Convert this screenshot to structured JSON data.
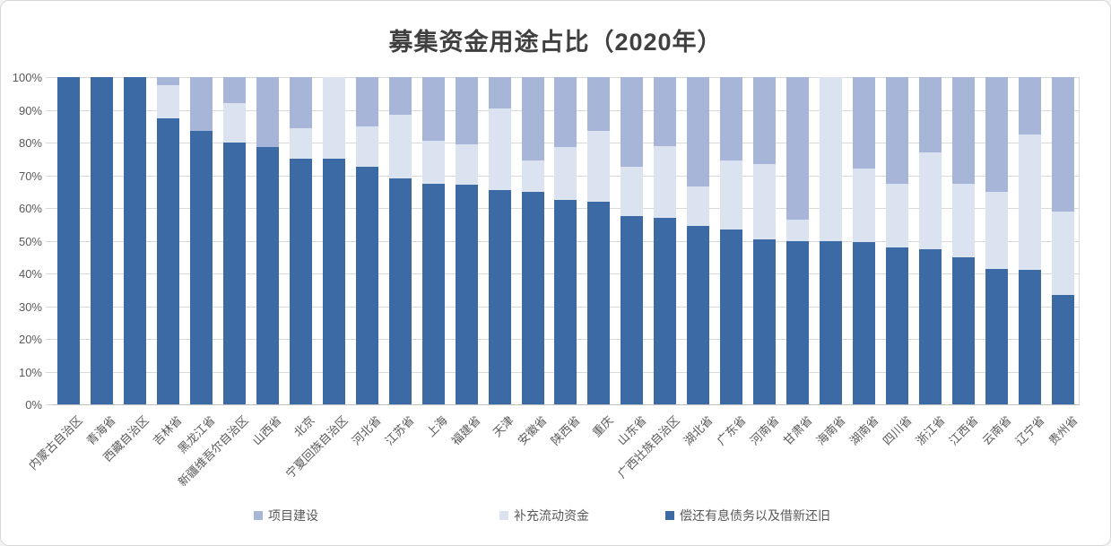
{
  "title": "募集资金用途占比（2020年）",
  "colors": {
    "project_construction": "#a7b6d8",
    "working_capital": "#dbe3f1",
    "debt_repayment": "#3b6aa5",
    "gridline": "#d9d9d9",
    "axis_line": "#bfbfbf",
    "axis_text": "#595959",
    "title_text": "#404040"
  },
  "y_axis": {
    "tick_labels": [
      "0%",
      "10%",
      "20%",
      "30%",
      "40%",
      "50%",
      "60%",
      "70%",
      "80%",
      "90%",
      "100%"
    ]
  },
  "legend": [
    {
      "label": "项目建设",
      "color": "#a7b6d8"
    },
    {
      "label": "补充流动资金",
      "color": "#dbe3f1"
    },
    {
      "label": "偿还有息债务以及借新还旧",
      "color": "#3b6aa5"
    }
  ],
  "chart_data": {
    "type": "bar",
    "subtype": "stacked-100-percent",
    "title": "募集资金用途占比（2020年）",
    "xlabel": "",
    "ylabel": "",
    "ylim": [
      0,
      100
    ],
    "grid": true,
    "legend_position": "bottom",
    "categories": [
      "内蒙古自治区",
      "青海省",
      "西藏自治区",
      "吉林省",
      "黑龙江省",
      "新疆维吾尔自治区",
      "山西省",
      "北京",
      "宁夏回族自治区",
      "河北省",
      "江苏省",
      "上海",
      "福建省",
      "天津",
      "安徽省",
      "陕西省",
      "重庆",
      "山东省",
      "广西壮族自治区",
      "湖北省",
      "广东省",
      "河南省",
      "甘肃省",
      "海南省",
      "湖南省",
      "四川省",
      "浙江省",
      "江西省",
      "云南省",
      "辽宁省",
      "贵州省"
    ],
    "series": [
      {
        "name": "偿还有息债务以及借新还旧",
        "color": "#3b6aa5",
        "stack_order": "bottom",
        "values": [
          100,
          100,
          100,
          87.5,
          83.5,
          80,
          78.5,
          75,
          75,
          72.5,
          69,
          67.5,
          67,
          65.5,
          65,
          62.5,
          62,
          57.5,
          57,
          54.5,
          53.5,
          50.5,
          50,
          50,
          49.5,
          48,
          47.5,
          45,
          41.5,
          41,
          33.5
        ]
      },
      {
        "name": "补充流动资金",
        "color": "#dbe3f1",
        "stack_order": "middle",
        "values": [
          0,
          0,
          0,
          10,
          0,
          12,
          0,
          9.5,
          25,
          12.5,
          19.5,
          13,
          12.5,
          25,
          9.5,
          16,
          21.5,
          15,
          22,
          12,
          21,
          23,
          6.5,
          50,
          22.5,
          19.5,
          29.5,
          22.5,
          23.5,
          41.5,
          25.5
        ]
      },
      {
        "name": "项目建设",
        "color": "#a7b6d8",
        "stack_order": "top",
        "values": [
          0,
          0,
          0,
          2.5,
          16.5,
          8,
          21.5,
          15.5,
          0,
          15,
          11.5,
          19.5,
          20.5,
          9.5,
          25.5,
          21.5,
          16.5,
          27.5,
          21,
          33.5,
          25.5,
          26.5,
          43.5,
          0,
          28,
          32.5,
          23,
          32.5,
          35,
          17.5,
          41
        ]
      }
    ]
  },
  "legend_layout": {
    "x_positions": [
      282,
      556,
      741
    ]
  }
}
